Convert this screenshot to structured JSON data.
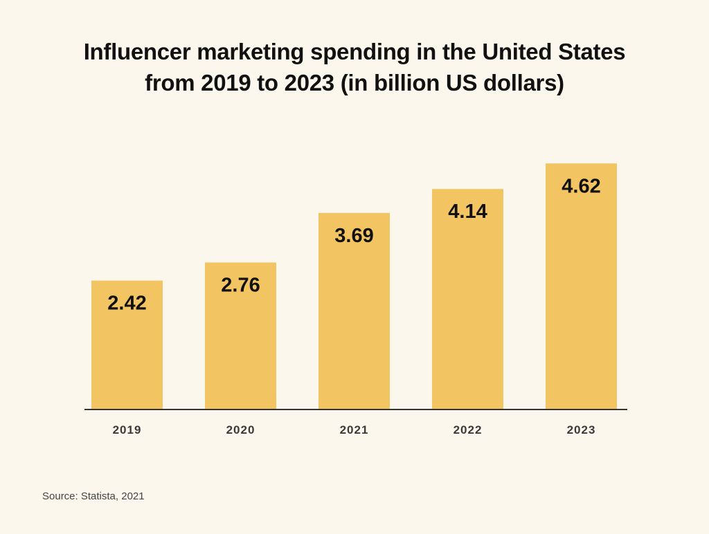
{
  "chart_data": {
    "type": "bar",
    "title_lines": [
      "Influencer marketing spending in the United States",
      "from 2019 to 2023 (in billion US dollars)"
    ],
    "categories": [
      "2019",
      "2020",
      "2021",
      "2022",
      "2023"
    ],
    "values": [
      2.42,
      2.76,
      3.69,
      4.14,
      4.62
    ],
    "value_labels": [
      "2.42",
      "2.76",
      "3.69",
      "4.14",
      "4.62"
    ],
    "xlabel": "",
    "ylabel": "",
    "ylim": [
      0,
      5
    ],
    "grid": false,
    "legend": "none",
    "colors": {
      "bar": "#f2c462",
      "background": "#fbf7ec",
      "axis": "#333333",
      "text": "#111111"
    }
  },
  "source": "Source: Statista, 2021"
}
